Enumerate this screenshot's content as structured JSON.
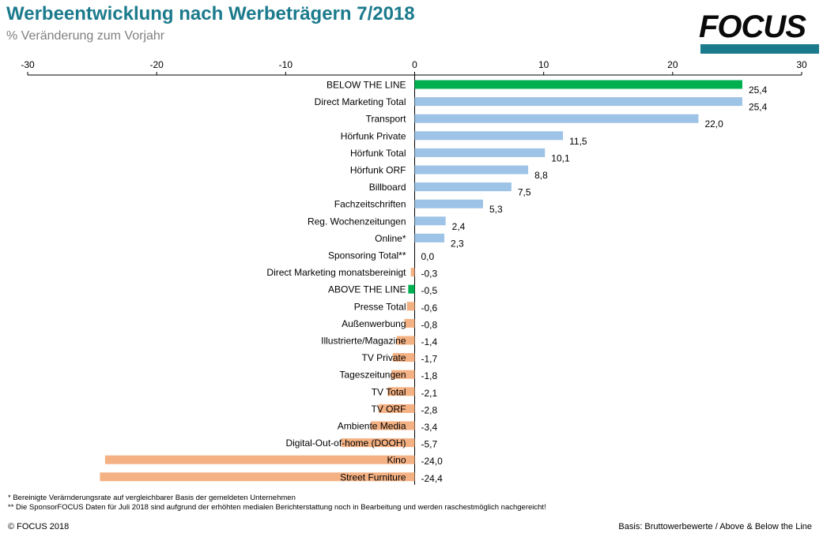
{
  "header": {
    "title": "Werbeentwicklung nach Werbeträgern 7/2018",
    "subtitle": "% Veränderung zum Vorjahr",
    "logo_text": "FOCUS"
  },
  "footer": {
    "note1": "* Bereinigte Verärnderungsrate auf vergleichbarer Basis der gemeldeten Unternehmen",
    "note2": "** Die SponsorFOCUS Daten für Juli 2018 sind aufgrund der erhöhten medialen Berichterstattung noch in Bearbeitung und werden raschestmöglich nachgereicht!",
    "copyright": "© FOCUS 2018",
    "basis": "Basis: Bruttowerbewerte / Above & Below the Line"
  },
  "colors": {
    "highlight": "#00b050",
    "positive": "#9dc3e6",
    "negative": "#f4b183",
    "title": "#1b7a8c"
  },
  "chart_data": {
    "type": "bar",
    "orientation": "horizontal",
    "title": "Werbeentwicklung nach Werbeträgern 7/2018",
    "subtitle": "% Veränderung zum Vorjahr",
    "xlim": [
      -30,
      30
    ],
    "xticks": [
      -30,
      -20,
      -10,
      0,
      10,
      20,
      30
    ],
    "axis_position": "top",
    "grid": false,
    "categories": [
      "BELOW THE LINE",
      "Direct Marketing Total",
      "Transport",
      "Hörfunk Private",
      "Hörfunk Total",
      "Hörfunk ORF",
      "Billboard",
      "Fachzeitschriften",
      "Reg. Wochenzeitungen",
      "Online*",
      "Sponsoring Total**",
      "Direct Marketing monatsbereinigt",
      "ABOVE THE LINE",
      "Presse Total",
      "Außenwerbung",
      "Illustrierte/Magazine",
      "TV Private",
      "Tageszeitungen",
      "TV Total",
      "TV ORF",
      "Ambiente Media",
      "Digital-Out-of-home (DOOH)",
      "Kino",
      "Street Furniture"
    ],
    "values": [
      25.4,
      25.4,
      22.0,
      11.5,
      10.1,
      8.8,
      7.5,
      5.3,
      2.4,
      2.3,
      0.0,
      -0.3,
      -0.5,
      -0.6,
      -0.8,
      -1.4,
      -1.7,
      -1.8,
      -2.1,
      -2.8,
      -3.4,
      -5.7,
      -24.0,
      -24.4
    ],
    "labels": [
      "25,4",
      "25,4",
      "22,0",
      "11,5",
      "10,1",
      "8,8",
      "7,5",
      "5,3",
      "2,4",
      "2,3",
      "0,0",
      "-0,3",
      "-0,5",
      "-0,6",
      "-0,8",
      "-1,4",
      "-1,7",
      "-1,8",
      "-2,1",
      "-2,8",
      "-3,4",
      "-5,7",
      "-24,0",
      "-24,4"
    ],
    "highlighted": [
      "BELOW THE LINE",
      "ABOVE THE LINE"
    ]
  }
}
